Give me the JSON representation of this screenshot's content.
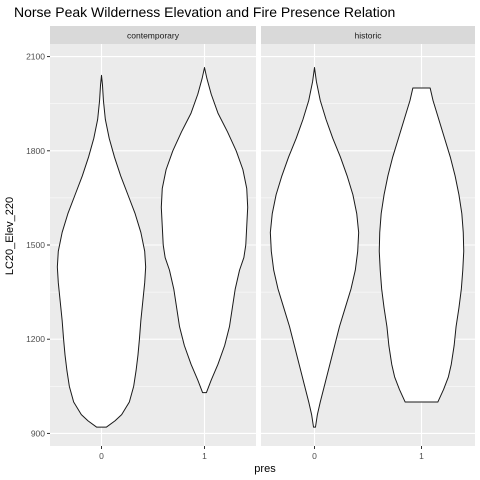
{
  "chart_data": {
    "type": "violin",
    "title": "Norse Peak Wilderness Elevation and Fire Presence Relation",
    "xlabel": "pres",
    "ylabel": "LC20_Elev_220",
    "y_ticks": [
      900,
      1200,
      1500,
      1800,
      2100
    ],
    "ylim": [
      860,
      2140
    ],
    "categories": [
      "0",
      "1"
    ],
    "grid": true,
    "facets": [
      {
        "strip": "contemporary",
        "violins": [
          {
            "category": "0",
            "profile": [
              [
                920,
                0.1
              ],
              [
                940,
                0.28
              ],
              [
                960,
                0.42
              ],
              [
                1000,
                0.58
              ],
              [
                1050,
                0.67
              ],
              [
                1100,
                0.72
              ],
              [
                1150,
                0.76
              ],
              [
                1200,
                0.79
              ],
              [
                1260,
                0.82
              ],
              [
                1320,
                0.86
              ],
              [
                1380,
                0.9
              ],
              [
                1430,
                0.92
              ],
              [
                1480,
                0.9
              ],
              [
                1540,
                0.82
              ],
              [
                1600,
                0.7
              ],
              [
                1660,
                0.55
              ],
              [
                1720,
                0.4
              ],
              [
                1780,
                0.27
              ],
              [
                1840,
                0.16
              ],
              [
                1900,
                0.08
              ],
              [
                1960,
                0.04
              ],
              [
                2010,
                0.02
              ],
              [
                2040,
                0.0
              ]
            ]
          },
          {
            "category": "1",
            "profile": [
              [
                1030,
                0.04
              ],
              [
                1070,
                0.14
              ],
              [
                1120,
                0.28
              ],
              [
                1180,
                0.42
              ],
              [
                1240,
                0.52
              ],
              [
                1300,
                0.58
              ],
              [
                1360,
                0.64
              ],
              [
                1420,
                0.73
              ],
              [
                1460,
                0.82
              ],
              [
                1500,
                0.86
              ],
              [
                1560,
                0.88
              ],
              [
                1620,
                0.9
              ],
              [
                1680,
                0.88
              ],
              [
                1740,
                0.8
              ],
              [
                1800,
                0.66
              ],
              [
                1860,
                0.48
              ],
              [
                1920,
                0.28
              ],
              [
                1980,
                0.14
              ],
              [
                2030,
                0.05
              ],
              [
                2065,
                0.0
              ]
            ]
          }
        ]
      },
      {
        "strip": "historic",
        "violins": [
          {
            "category": "0",
            "profile": [
              [
                920,
                0.02
              ],
              [
                960,
                0.06
              ],
              [
                1000,
                0.12
              ],
              [
                1060,
                0.22
              ],
              [
                1120,
                0.32
              ],
              [
                1180,
                0.42
              ],
              [
                1240,
                0.52
              ],
              [
                1300,
                0.64
              ],
              [
                1360,
                0.76
              ],
              [
                1420,
                0.85
              ],
              [
                1480,
                0.9
              ],
              [
                1540,
                0.92
              ],
              [
                1600,
                0.88
              ],
              [
                1660,
                0.8
              ],
              [
                1720,
                0.68
              ],
              [
                1780,
                0.54
              ],
              [
                1840,
                0.38
              ],
              [
                1900,
                0.24
              ],
              [
                1960,
                0.12
              ],
              [
                2020,
                0.04
              ],
              [
                2065,
                0.0
              ]
            ]
          },
          {
            "category": "1",
            "profile": [
              [
                1000,
                0.34
              ],
              [
                1040,
                0.46
              ],
              [
                1080,
                0.56
              ],
              [
                1120,
                0.62
              ],
              [
                1180,
                0.68
              ],
              [
                1240,
                0.72
              ],
              [
                1300,
                0.78
              ],
              [
                1360,
                0.83
              ],
              [
                1420,
                0.86
              ],
              [
                1480,
                0.88
              ],
              [
                1540,
                0.87
              ],
              [
                1600,
                0.84
              ],
              [
                1660,
                0.78
              ],
              [
                1720,
                0.7
              ],
              [
                1780,
                0.6
              ],
              [
                1840,
                0.48
              ],
              [
                1900,
                0.36
              ],
              [
                1960,
                0.24
              ],
              [
                2000,
                0.18
              ]
            ]
          }
        ]
      }
    ]
  }
}
